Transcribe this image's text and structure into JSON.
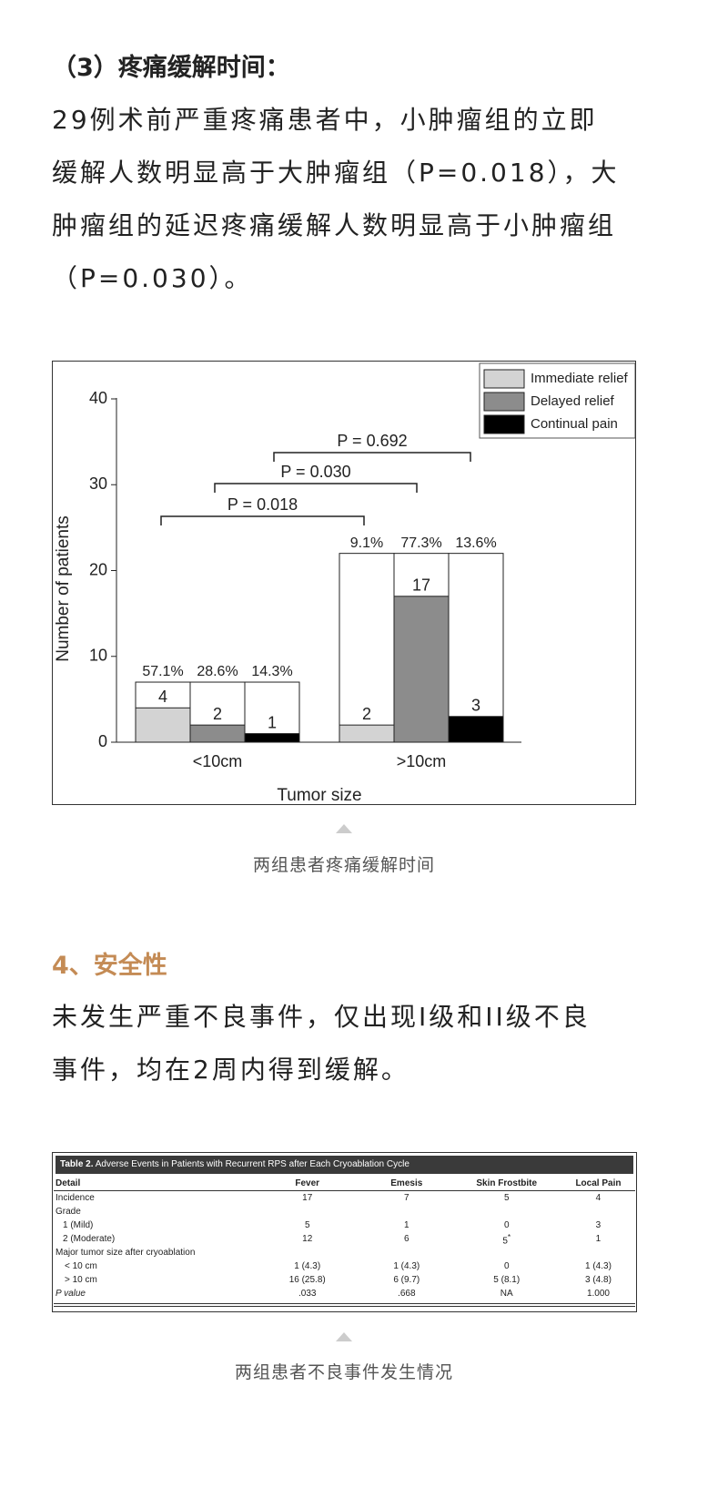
{
  "section3": {
    "heading": "（3）疼痛缓解时间：",
    "lines": [
      "29例术前严重疼痛患者中，小肿瘤组的立即",
      "缓解人数明显高于大肿瘤组（P=0.018），大",
      "肿瘤组的延迟疼痛缓解人数明显高于小肿瘤组",
      "（P=0.030）。"
    ]
  },
  "chart_data": {
    "type": "bar",
    "xlabel": "Tumor size",
    "ylabel": "Number of patients",
    "categories": [
      "<10cm",
      ">10cm"
    ],
    "totals": [
      7,
      22
    ],
    "series": [
      {
        "name": "Immediate relief",
        "color": "#d3d3d3",
        "values": [
          4,
          2
        ],
        "percent": [
          57.1,
          9.1
        ],
        "percent_labels": [
          "57.1%",
          "9.1%"
        ]
      },
      {
        "name": "Delayed relief",
        "color": "#8c8c8c",
        "values": [
          2,
          17
        ],
        "percent": [
          28.6,
          77.3
        ],
        "percent_labels": [
          "28.6%",
          "77.3%"
        ]
      },
      {
        "name": "Continual pain",
        "color": "#000000",
        "values": [
          1,
          3
        ],
        "percent": [
          14.3,
          13.6
        ],
        "percent_labels": [
          "14.3%",
          "13.6%"
        ]
      }
    ],
    "ylim": [
      0,
      40
    ],
    "yticks": [
      0,
      10,
      20,
      30,
      40
    ],
    "legend": "upper right",
    "annotations": [
      "P = 0.018",
      "P = 0.030",
      "P = 0.692"
    ]
  },
  "figure1": {
    "caption": "两组患者疼痛缓解时间"
  },
  "section4": {
    "heading": "4、安全性",
    "lines": [
      "未发生严重不良事件，仅出现I级和II级不良",
      "事件，均在2周内得到缓解。"
    ]
  },
  "table": {
    "label": "Table 2.",
    "title": "Adverse Events in Patients with Recurrent RPS after Each Cryoablation Cycle",
    "columns": [
      "Detail",
      "Fever",
      "Emesis",
      "Skin Frostbite",
      "Local Pain"
    ],
    "rows": [
      [
        "Incidence",
        "17",
        "7",
        "5",
        "4"
      ],
      [
        "Grade"
      ],
      [
        "1 (Mild)",
        "5",
        "1",
        "0",
        "3"
      ],
      [
        "2 (Moderate)",
        "12",
        "6",
        {
          "text": "5",
          "sup": "*"
        },
        "1"
      ],
      [
        "Major tumor size after cryoablation"
      ],
      [
        "< 10 cm",
        "1 (4.3)",
        "1 (4.3)",
        "0",
        "1 (4.3)"
      ],
      [
        "> 10 cm",
        "16 (25.8)",
        "6 (9.7)",
        "5 (8.1)",
        "3 (4.8)"
      ],
      [
        "P value",
        ".033",
        ".668",
        "NA",
        "1.000"
      ]
    ]
  },
  "figure2": {
    "caption": "两组患者不良事件发生情况"
  }
}
